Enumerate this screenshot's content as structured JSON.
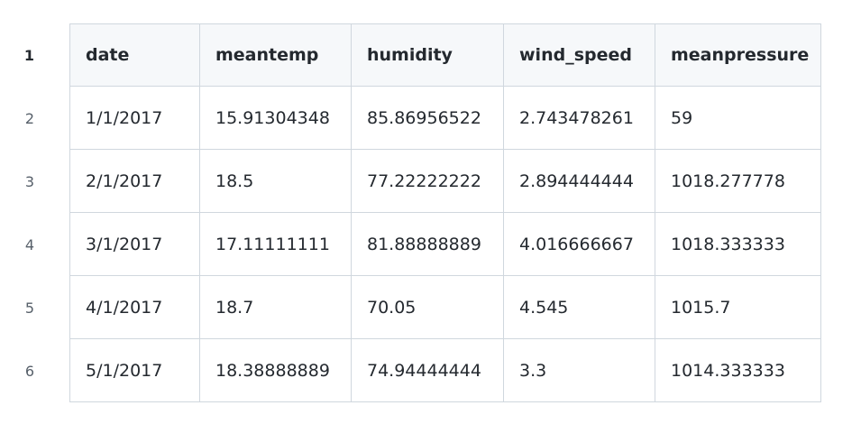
{
  "table": {
    "headers": [
      "date",
      "meantemp",
      "humidity",
      "wind_speed",
      "meanpressure"
    ],
    "line_numbers": [
      "1",
      "2",
      "3",
      "4",
      "5",
      "6"
    ],
    "rows": [
      [
        "1/1/2017",
        "15.91304348",
        "85.86956522",
        "2.743478261",
        "59"
      ],
      [
        "2/1/2017",
        "18.5",
        "77.22222222",
        "2.894444444",
        "1018.277778"
      ],
      [
        "3/1/2017",
        "17.11111111",
        "81.88888889",
        "4.016666667",
        "1018.333333"
      ],
      [
        "4/1/2017",
        "18.7",
        "70.05",
        "4.545",
        "1015.7"
      ],
      [
        "5/1/2017",
        "18.38888889",
        "74.94444444",
        "3.3",
        "1014.333333"
      ]
    ]
  }
}
